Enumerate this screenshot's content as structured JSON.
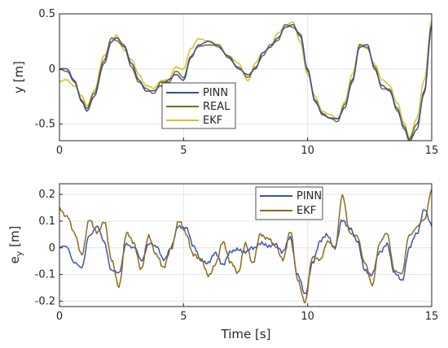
{
  "chart_data": [
    {
      "type": "line",
      "title": "",
      "xlabel": "",
      "ylabel": "y [m]",
      "xlim": [
        0,
        15
      ],
      "ylim": [
        -0.65,
        0.5
      ],
      "xticks": [
        0,
        5,
        10,
        15
      ],
      "yticks": [
        -0.5,
        0,
        0.5
      ],
      "xtick_labels": [
        "0",
        "5",
        "10",
        "15"
      ],
      "ytick_labels": [
        "-0.5",
        "0",
        "0.5"
      ],
      "grid": true,
      "legend": "lower-center",
      "series": [
        {
          "name": "PINN",
          "color": "#3a4ba6",
          "x": [
            0,
            0.3,
            0.6,
            0.9,
            1.1,
            1.4,
            1.8,
            2.1,
            2.3,
            2.6,
            2.9,
            3.2,
            3.5,
            3.8,
            4.1,
            4.4,
            4.7,
            5.0,
            5.3,
            5.6,
            6.0,
            6.4,
            6.8,
            7.2,
            7.6,
            7.9,
            8.2,
            8.5,
            8.8,
            9.1,
            9.4,
            9.7,
            10.0,
            10.3,
            10.6,
            10.9,
            11.2,
            11.5,
            11.8,
            12.1,
            12.4,
            12.7,
            13.0,
            13.3,
            13.6,
            13.9,
            14.1,
            14.4,
            14.7,
            15.0
          ],
          "y": [
            0.0,
            0.0,
            -0.1,
            -0.3,
            -0.38,
            -0.25,
            0.05,
            0.25,
            0.28,
            0.22,
            0.05,
            -0.1,
            -0.2,
            -0.2,
            -0.15,
            -0.1,
            -0.05,
            -0.1,
            0.1,
            0.22,
            0.25,
            0.2,
            0.12,
            0.0,
            -0.05,
            0.0,
            0.15,
            0.2,
            0.28,
            0.38,
            0.4,
            0.3,
            0.0,
            -0.3,
            -0.4,
            -0.45,
            -0.45,
            -0.35,
            -0.1,
            0.2,
            0.22,
            0.0,
            -0.15,
            -0.2,
            -0.35,
            -0.55,
            -0.65,
            -0.55,
            -0.2,
            0.4
          ]
        },
        {
          "name": "REAL",
          "color": "#7a6a1c",
          "x": [
            0,
            0.3,
            0.6,
            0.9,
            1.1,
            1.4,
            1.8,
            2.1,
            2.3,
            2.6,
            2.9,
            3.2,
            3.5,
            3.8,
            4.1,
            4.4,
            4.7,
            5.0,
            5.3,
            5.6,
            6.0,
            6.4,
            6.8,
            7.2,
            7.6,
            7.9,
            8.2,
            8.5,
            8.8,
            9.1,
            9.4,
            9.7,
            10.0,
            10.3,
            10.6,
            10.9,
            11.2,
            11.5,
            11.8,
            12.1,
            12.4,
            12.7,
            13.0,
            13.3,
            13.6,
            13.9,
            14.1,
            14.4,
            14.7,
            15.0
          ],
          "y": [
            0.0,
            -0.02,
            -0.12,
            -0.28,
            -0.36,
            -0.22,
            0.08,
            0.28,
            0.26,
            0.2,
            0.02,
            -0.12,
            -0.18,
            -0.22,
            -0.12,
            -0.12,
            -0.02,
            -0.08,
            0.12,
            0.2,
            0.22,
            0.22,
            0.1,
            0.02,
            -0.08,
            0.02,
            0.12,
            0.22,
            0.26,
            0.4,
            0.38,
            0.32,
            -0.02,
            -0.28,
            -0.42,
            -0.44,
            -0.48,
            -0.32,
            -0.12,
            0.22,
            0.2,
            0.02,
            -0.18,
            -0.18,
            -0.38,
            -0.52,
            -0.64,
            -0.5,
            -0.22,
            0.38
          ]
        },
        {
          "name": "EKF",
          "color": "#d7c21e",
          "x": [
            0,
            0.3,
            0.6,
            0.9,
            1.1,
            1.4,
            1.8,
            2.1,
            2.3,
            2.6,
            2.9,
            3.2,
            3.5,
            3.8,
            4.1,
            4.4,
            4.7,
            5.0,
            5.3,
            5.6,
            6.0,
            6.4,
            6.8,
            7.2,
            7.6,
            7.9,
            8.2,
            8.5,
            8.8,
            9.1,
            9.4,
            9.7,
            10.0,
            10.3,
            10.6,
            10.9,
            11.2,
            11.5,
            11.8,
            12.1,
            12.4,
            12.7,
            13.0,
            13.3,
            13.6,
            13.9,
            14.1,
            14.4,
            14.7,
            15.0
          ],
          "y": [
            -0.12,
            -0.1,
            -0.15,
            -0.25,
            -0.33,
            -0.2,
            0.12,
            0.25,
            0.3,
            0.18,
            0.08,
            -0.05,
            -0.15,
            -0.18,
            -0.1,
            -0.1,
            0.02,
            0.0,
            0.18,
            0.28,
            0.25,
            0.22,
            0.12,
            0.05,
            -0.1,
            0.05,
            0.15,
            0.2,
            0.32,
            0.4,
            0.42,
            0.25,
            -0.05,
            -0.25,
            -0.38,
            -0.42,
            -0.45,
            -0.3,
            -0.05,
            0.22,
            0.18,
            0.05,
            -0.1,
            -0.15,
            -0.3,
            -0.5,
            -0.62,
            -0.45,
            -0.1,
            0.45
          ]
        }
      ]
    },
    {
      "type": "line",
      "title": "",
      "xlabel": "Time [s]",
      "ylabel_main": "e",
      "ylabel_sub": "y",
      "ylabel_rest": " [m]",
      "xlim": [
        0,
        15
      ],
      "ylim": [
        -0.22,
        0.24
      ],
      "xticks": [
        0,
        5,
        10,
        15
      ],
      "yticks": [
        -0.2,
        -0.1,
        0,
        0.1,
        0.2
      ],
      "xtick_labels": [
        "0",
        "5",
        "10",
        "15"
      ],
      "ytick_labels": [
        "-0.2",
        "-0.1",
        "0",
        "0.1",
        "0.2"
      ],
      "grid": true,
      "legend": "top-right",
      "series": [
        {
          "name": "PINN",
          "color": "#3a55b4",
          "x": [
            0,
            0.3,
            0.6,
            0.9,
            1.2,
            1.5,
            1.8,
            2.1,
            2.4,
            2.7,
            3.0,
            3.3,
            3.6,
            3.9,
            4.2,
            4.5,
            4.8,
            5.1,
            5.4,
            5.7,
            6.0,
            6.3,
            6.6,
            6.9,
            7.2,
            7.5,
            7.8,
            8.1,
            8.4,
            8.7,
            9.0,
            9.3,
            9.6,
            9.9,
            10.2,
            10.5,
            10.8,
            11.1,
            11.4,
            11.7,
            12.0,
            12.3,
            12.6,
            12.9,
            13.2,
            13.5,
            13.8,
            14.1,
            14.4,
            14.7,
            15.0
          ],
          "y": [
            0.0,
            0.0,
            -0.05,
            -0.08,
            0.05,
            0.08,
            0.02,
            -0.08,
            -0.1,
            0.02,
            0.0,
            -0.05,
            0.02,
            0.0,
            -0.04,
            0.0,
            0.08,
            0.08,
            0.0,
            -0.04,
            -0.06,
            -0.02,
            -0.06,
            -0.02,
            0.0,
            -0.02,
            0.0,
            0.02,
            0.0,
            0.02,
            -0.02,
            0.04,
            -0.1,
            -0.18,
            -0.05,
            0.02,
            0.05,
            0.0,
            0.1,
            0.08,
            0.02,
            -0.08,
            -0.1,
            -0.02,
            0.02,
            -0.1,
            -0.12,
            0.0,
            0.05,
            0.15,
            0.08
          ]
        },
        {
          "name": "EKF",
          "color": "#8c6b1c",
          "x": [
            0,
            0.3,
            0.6,
            0.9,
            1.2,
            1.5,
            1.8,
            2.1,
            2.4,
            2.7,
            3.0,
            3.3,
            3.6,
            3.9,
            4.2,
            4.5,
            4.8,
            5.1,
            5.4,
            5.7,
            6.0,
            6.3,
            6.6,
            6.9,
            7.2,
            7.5,
            7.8,
            8.1,
            8.4,
            8.7,
            9.0,
            9.3,
            9.6,
            9.9,
            10.2,
            10.5,
            10.8,
            11.1,
            11.4,
            11.7,
            12.0,
            12.3,
            12.6,
            12.9,
            13.2,
            13.5,
            13.8,
            14.1,
            14.4,
            14.7,
            15.0
          ],
          "y": [
            0.15,
            0.12,
            0.05,
            -0.02,
            0.1,
            0.06,
            0.1,
            -0.05,
            -0.14,
            0.05,
            0.02,
            -0.08,
            0.04,
            -0.02,
            -0.08,
            0.0,
            0.1,
            0.05,
            -0.02,
            -0.05,
            -0.1,
            -0.06,
            0.02,
            -0.05,
            -0.1,
            0.02,
            -0.06,
            0.05,
            0.04,
            0.0,
            -0.04,
            0.06,
            -0.12,
            -0.2,
            -0.04,
            -0.04,
            0.02,
            0.0,
            0.2,
            0.05,
            0.05,
            -0.06,
            -0.14,
            0.02,
            0.05,
            -0.08,
            -0.1,
            0.05,
            0.08,
            0.1,
            0.22
          ]
        }
      ]
    }
  ]
}
